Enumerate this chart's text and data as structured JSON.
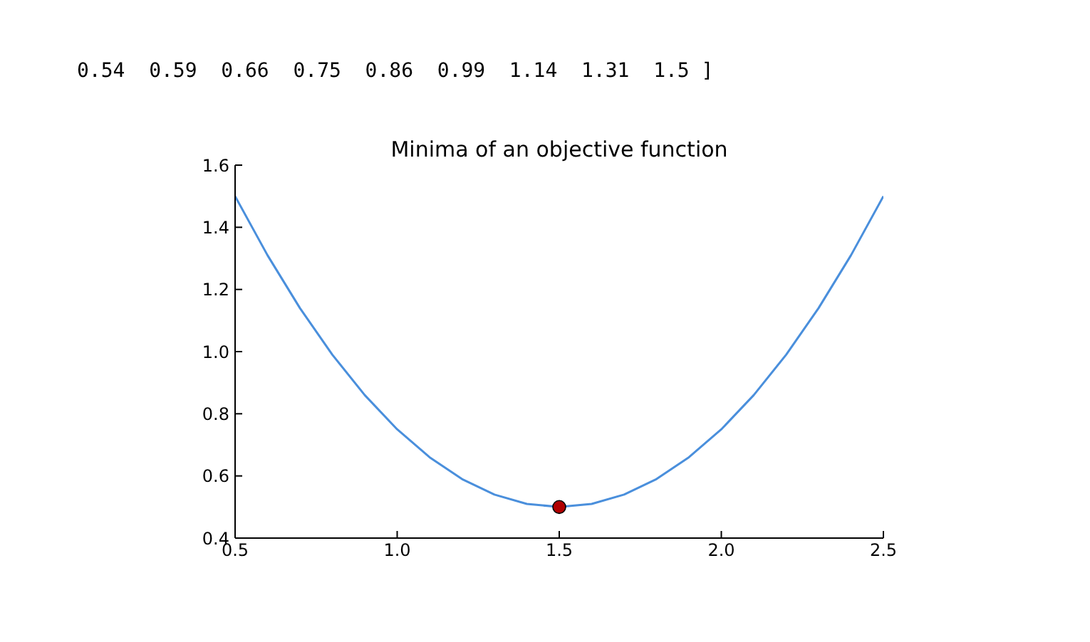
{
  "chart_data": {
    "type": "line",
    "title": "Minima of an objective function",
    "annotations": [
      "0.54  0.59  0.66  0.75  0.86  0.99  1.14  1.31  1.5 ]"
    ],
    "xlim": [
      0.5,
      2.5
    ],
    "xticks": [
      {
        "value": 0.5,
        "label": "0.5"
      },
      {
        "value": 1.0,
        "label": "1.0"
      },
      {
        "value": 1.5,
        "label": "1.5"
      },
      {
        "value": 2.0,
        "label": "2.0"
      },
      {
        "value": 2.5,
        "label": "2.5"
      }
    ],
    "ylim": [
      0.4,
      1.6
    ],
    "yticks": [
      {
        "value": 0.4,
        "label": "0.4"
      },
      {
        "value": 0.6,
        "label": "0.6"
      },
      {
        "value": 0.8,
        "label": "0.8"
      },
      {
        "value": 1.0,
        "label": "1.0"
      },
      {
        "value": 1.2,
        "label": "1.2"
      },
      {
        "value": 1.4,
        "label": "1.4"
      },
      {
        "value": 1.6,
        "label": "1.6"
      }
    ],
    "grid": false,
    "series": [
      {
        "color": "#4a8fdc",
        "marker": "none",
        "x": [
          0.5,
          0.6,
          0.7,
          0.8,
          0.9,
          1.0,
          1.1,
          1.2,
          1.3,
          1.4,
          1.5,
          1.6,
          1.7,
          1.8,
          1.9,
          2.0,
          2.1,
          2.2,
          2.3,
          2.4,
          2.5
        ],
        "values": [
          1.5,
          1.31,
          1.14,
          0.99,
          0.86,
          0.75,
          0.66,
          0.59,
          0.54,
          0.51,
          0.5,
          0.51,
          0.54,
          0.59,
          0.66,
          0.75,
          0.86,
          0.99,
          1.14,
          1.31,
          1.5
        ]
      },
      {
        "type": "scatter",
        "color": "#b00000",
        "marker": "circle",
        "x": [
          1.5
        ],
        "values": [
          0.5
        ]
      }
    ]
  }
}
